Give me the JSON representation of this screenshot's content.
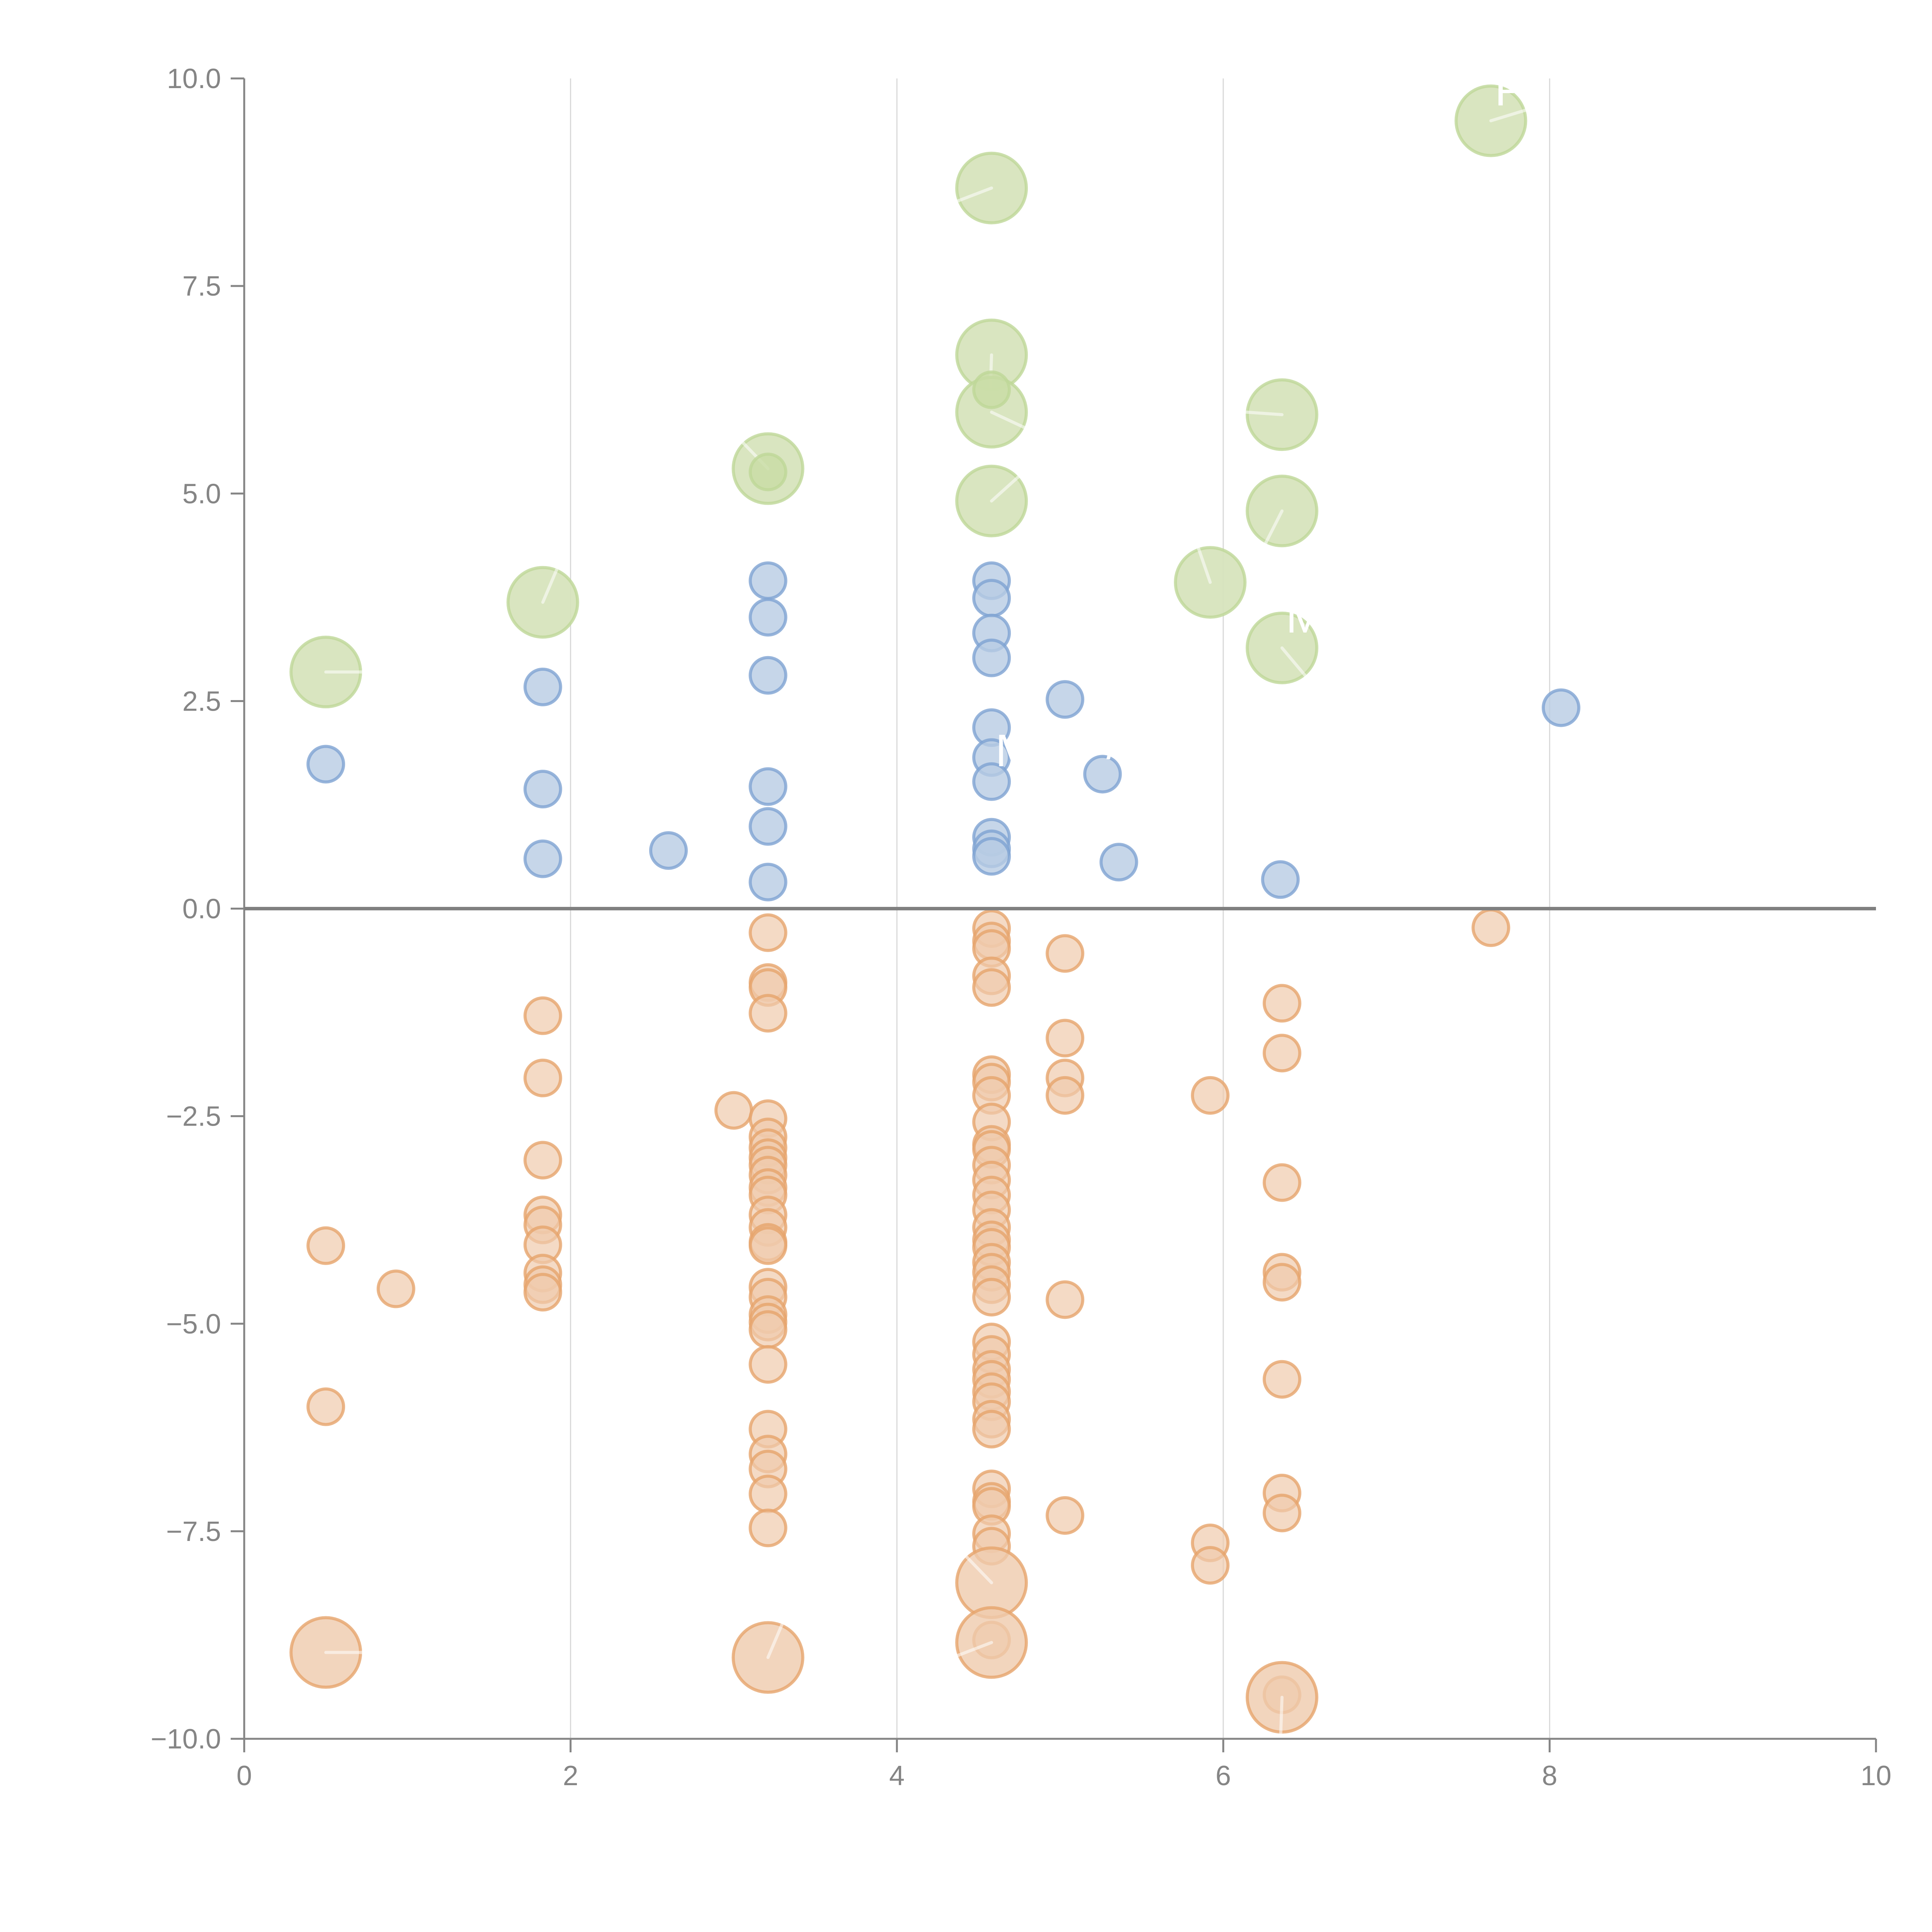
{
  "chart_data": {
    "type": "scatter",
    "title": "",
    "xlabel": "",
    "ylabel": "",
    "xlim": [
      0,
      10
    ],
    "ylim": [
      -10,
      10
    ],
    "x_ticks": [
      "0",
      "2",
      "4",
      "6",
      "8",
      "10"
    ],
    "y_ticks": [
      "10.0",
      "7.5",
      "5.0",
      "2.5",
      "0.0",
      "−2.5",
      "−5.0",
      "−7.5",
      "−10.0"
    ],
    "grid": "vertical",
    "reference_line_y": 0,
    "colors": {
      "blue_fill": "#b8cce4",
      "blue_stroke": "#7ea3d2",
      "orange_fill": "#efcbac",
      "orange_stroke": "#e6a46c",
      "green_fill": "#d7e4bd",
      "green_stroke": "#bed797",
      "axis": "#858585",
      "grid": "#d9d9d9"
    },
    "point_labels": [
      {
        "text": "P",
        "x": 7.64,
        "y": 9.49
      },
      {
        "text": "ML",
        "x": 6.36,
        "y": 3.14
      },
      {
        "text": "M",
        "x": 4.58,
        "y": 1.53
      },
      {
        "text": "/",
        "x": 5.26,
        "y": 1.62
      }
    ],
    "series": [
      {
        "name": "blue",
        "size": "small",
        "points": [
          [
            0.5,
            1.74
          ],
          [
            1.83,
            2.67
          ],
          [
            1.83,
            1.44
          ],
          [
            1.83,
            0.6
          ],
          [
            2.6,
            0.7
          ],
          [
            3.21,
            3.95
          ],
          [
            3.21,
            3.51
          ],
          [
            3.21,
            2.81
          ],
          [
            3.21,
            1.47
          ],
          [
            3.21,
            0.99
          ],
          [
            3.21,
            0.32
          ],
          [
            4.58,
            3.95
          ],
          [
            4.58,
            3.74
          ],
          [
            4.58,
            3.32
          ],
          [
            4.58,
            3.02
          ],
          [
            4.58,
            2.18
          ],
          [
            4.58,
            1.82
          ],
          [
            4.58,
            1.53
          ],
          [
            4.58,
            0.86
          ],
          [
            4.58,
            0.72
          ],
          [
            4.58,
            0.63
          ],
          [
            5.03,
            2.52
          ],
          [
            5.26,
            1.62
          ],
          [
            5.36,
            0.56
          ],
          [
            6.35,
            0.35
          ],
          [
            8.07,
            2.42
          ]
        ]
      },
      {
        "name": "green",
        "size": "large",
        "points": [
          [
            0.5,
            2.85
          ],
          [
            1.83,
            3.69
          ],
          [
            3.21,
            5.3
          ],
          [
            4.58,
            8.68
          ],
          [
            4.58,
            6.67
          ],
          [
            4.58,
            5.98
          ],
          [
            4.58,
            4.91
          ],
          [
            5.92,
            3.93
          ],
          [
            6.36,
            5.95
          ],
          [
            6.36,
            4.79
          ],
          [
            6.36,
            3.14
          ],
          [
            7.64,
            9.49
          ]
        ]
      },
      {
        "name": "green-small",
        "size": "small",
        "points": [
          [
            3.21,
            5.26
          ],
          [
            4.58,
            6.25
          ]
        ]
      },
      {
        "name": "orange",
        "size": "small",
        "points": [
          [
            0.5,
            -4.06
          ],
          [
            0.5,
            -6.0
          ],
          [
            0.93,
            -4.58
          ],
          [
            1.83,
            -1.29
          ],
          [
            1.83,
            -2.04
          ],
          [
            1.83,
            -3.03
          ],
          [
            1.83,
            -3.69
          ],
          [
            1.83,
            -3.81
          ],
          [
            1.83,
            -4.05
          ],
          [
            1.83,
            -4.39
          ],
          [
            1.83,
            -4.53
          ],
          [
            1.83,
            -4.62
          ],
          [
            3.0,
            -2.43
          ],
          [
            3.21,
            -0.29
          ],
          [
            3.21,
            -0.89
          ],
          [
            3.21,
            -0.95
          ],
          [
            3.21,
            -1.26
          ],
          [
            3.21,
            -2.53
          ],
          [
            3.21,
            -2.75
          ],
          [
            3.21,
            -2.88
          ],
          [
            3.21,
            -3.0
          ],
          [
            3.21,
            -3.09
          ],
          [
            3.21,
            -3.21
          ],
          [
            3.21,
            -3.36
          ],
          [
            3.21,
            -3.45
          ],
          [
            3.21,
            -3.69
          ],
          [
            3.21,
            -3.84
          ],
          [
            3.21,
            -4.02
          ],
          [
            3.21,
            -4.06
          ],
          [
            3.21,
            -4.56
          ],
          [
            3.21,
            -4.68
          ],
          [
            3.21,
            -4.89
          ],
          [
            3.21,
            -4.98
          ],
          [
            3.21,
            -5.07
          ],
          [
            3.21,
            -5.49
          ],
          [
            3.21,
            -6.27
          ],
          [
            3.21,
            -6.57
          ],
          [
            3.21,
            -6.75
          ],
          [
            3.21,
            -7.05
          ],
          [
            3.21,
            -7.46
          ],
          [
            4.58,
            -0.24
          ],
          [
            4.58,
            -0.39
          ],
          [
            4.58,
            -0.48
          ],
          [
            4.58,
            -0.81
          ],
          [
            4.58,
            -0.95
          ],
          [
            4.58,
            -2.0
          ],
          [
            4.58,
            -2.09
          ],
          [
            4.58,
            -2.25
          ],
          [
            4.58,
            -2.57
          ],
          [
            4.58,
            -2.84
          ],
          [
            4.58,
            -2.9
          ],
          [
            4.58,
            -3.09
          ],
          [
            4.58,
            -3.27
          ],
          [
            4.58,
            -3.45
          ],
          [
            4.58,
            -3.63
          ],
          [
            4.58,
            -3.84
          ],
          [
            4.58,
            -3.99
          ],
          [
            4.58,
            -4.08
          ],
          [
            4.58,
            -4.26
          ],
          [
            4.58,
            -4.38
          ],
          [
            4.58,
            -4.53
          ],
          [
            4.58,
            -4.68
          ],
          [
            4.58,
            -5.22
          ],
          [
            4.58,
            -5.37
          ],
          [
            4.58,
            -5.55
          ],
          [
            4.58,
            -5.67
          ],
          [
            4.58,
            -5.82
          ],
          [
            4.58,
            -5.94
          ],
          [
            4.58,
            -6.15
          ],
          [
            4.58,
            -6.27
          ],
          [
            4.58,
            -6.99
          ],
          [
            4.58,
            -7.14
          ],
          [
            4.58,
            -7.2
          ],
          [
            4.58,
            -7.53
          ],
          [
            4.58,
            -7.68
          ],
          [
            4.58,
            -8.81
          ],
          [
            5.03,
            -0.54
          ],
          [
            5.03,
            -1.56
          ],
          [
            5.03,
            -2.04
          ],
          [
            5.03,
            -2.25
          ],
          [
            5.03,
            -4.71
          ],
          [
            5.03,
            -7.31
          ],
          [
            5.92,
            -2.25
          ],
          [
            5.92,
            -7.64
          ],
          [
            5.92,
            -7.91
          ],
          [
            6.36,
            -1.14
          ],
          [
            6.36,
            -1.74
          ],
          [
            6.36,
            -3.3
          ],
          [
            6.36,
            -4.38
          ],
          [
            6.36,
            -4.5
          ],
          [
            6.36,
            -5.67
          ],
          [
            6.36,
            -7.04
          ],
          [
            6.36,
            -7.28
          ],
          [
            6.36,
            -9.47
          ],
          [
            7.64,
            -0.23
          ]
        ]
      },
      {
        "name": "orange-large",
        "size": "large",
        "points": [
          [
            0.5,
            -8.96
          ],
          [
            3.21,
            -9.02
          ],
          [
            4.58,
            -8.12
          ],
          [
            4.58,
            -8.84
          ],
          [
            6.36,
            -9.5
          ]
        ]
      }
    ]
  }
}
